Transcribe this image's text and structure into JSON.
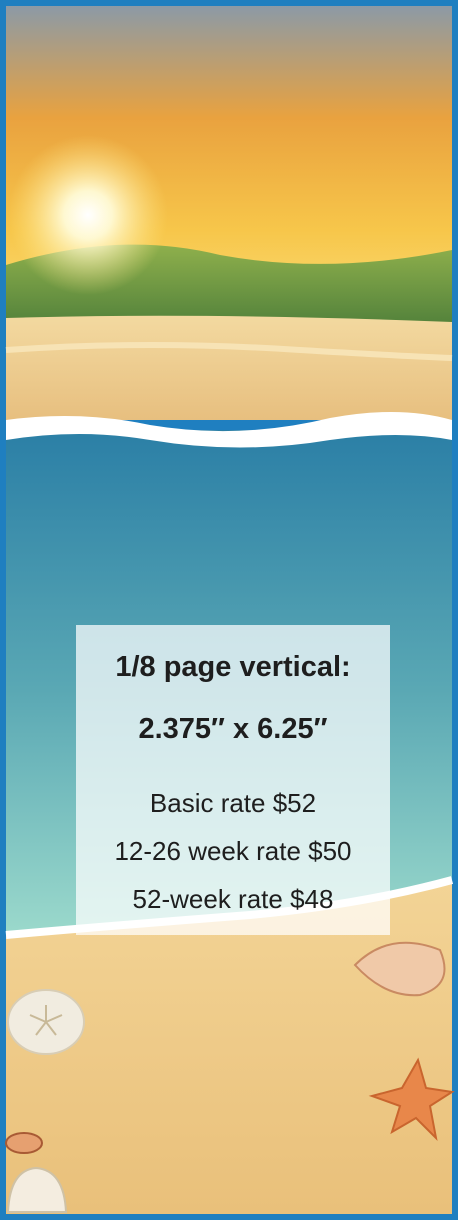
{
  "heading": {
    "line1": "1/8 page vertical:",
    "line2": "2.375″ x 6.25″"
  },
  "rates": [
    "Basic rate $52",
    "12-26 week rate $50",
    "52-week rate $48"
  ]
}
